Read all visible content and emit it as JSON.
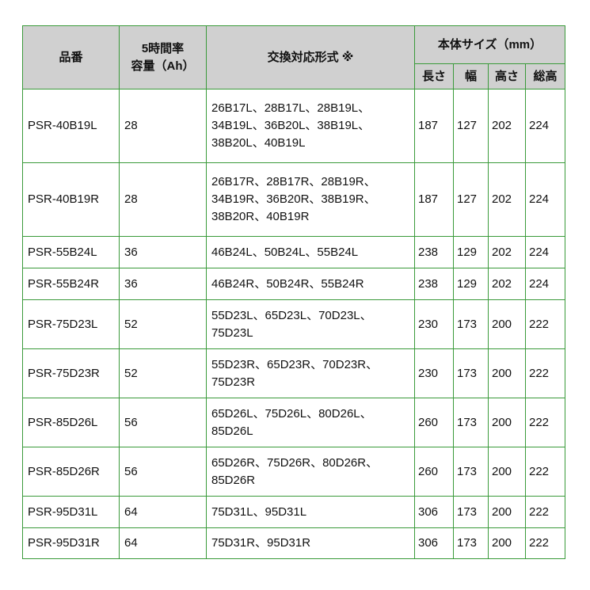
{
  "headers": {
    "model": "品番",
    "capacity_l1": "5時間率",
    "capacity_l2": "容量（Ah）",
    "compat": "交換対応形式 ※",
    "size": "本体サイズ（mm）",
    "length": "長さ",
    "width": "幅",
    "height": "高さ",
    "total_height": "総高"
  },
  "rows": [
    {
      "model": "PSR-40B19L",
      "capacity": "28",
      "compat": [
        "26B17L、28B17L、28B19L、",
        "34B19L、36B20L、38B19L、",
        "38B20L、40B19L"
      ],
      "length": "187",
      "width": "127",
      "height": "202",
      "total": "224"
    },
    {
      "model": "PSR-40B19R",
      "capacity": "28",
      "compat": [
        "26B17R、28B17R、28B19R、",
        "34B19R、36B20R、38B19R、",
        "38B20R、40B19R"
      ],
      "length": "187",
      "width": "127",
      "height": "202",
      "total": "224"
    },
    {
      "model": "PSR-55B24L",
      "capacity": "36",
      "compat": [
        "46B24L、50B24L、55B24L"
      ],
      "length": "238",
      "width": "129",
      "height": "202",
      "total": "224"
    },
    {
      "model": "PSR-55B24R",
      "capacity": "36",
      "compat": [
        "46B24R、50B24R、55B24R"
      ],
      "length": "238",
      "width": "129",
      "height": "202",
      "total": "224"
    },
    {
      "model": "PSR-75D23L",
      "capacity": "52",
      "compat": [
        "55D23L、65D23L、70D23L、",
        "75D23L"
      ],
      "length": "230",
      "width": "173",
      "height": "200",
      "total": "222"
    },
    {
      "model": "PSR-75D23R",
      "capacity": "52",
      "compat": [
        "55D23R、65D23R、70D23R、",
        "75D23R"
      ],
      "length": "230",
      "width": "173",
      "height": "200",
      "total": "222"
    },
    {
      "model": "PSR-85D26L",
      "capacity": "56",
      "compat": [
        "65D26L、75D26L、80D26L、",
        "85D26L"
      ],
      "length": "260",
      "width": "173",
      "height": "200",
      "total": "222"
    },
    {
      "model": "PSR-85D26R",
      "capacity": "56",
      "compat": [
        "65D26R、75D26R、80D26R、",
        "85D26R"
      ],
      "length": "260",
      "width": "173",
      "height": "200",
      "total": "222"
    },
    {
      "model": "PSR-95D31L",
      "capacity": "64",
      "compat": [
        "75D31L、95D31L"
      ],
      "length": "306",
      "width": "173",
      "height": "200",
      "total": "222"
    },
    {
      "model": "PSR-95D31R",
      "capacity": "64",
      "compat": [
        "75D31R、95D31R"
      ],
      "length": "306",
      "width": "173",
      "height": "200",
      "total": "222"
    }
  ]
}
